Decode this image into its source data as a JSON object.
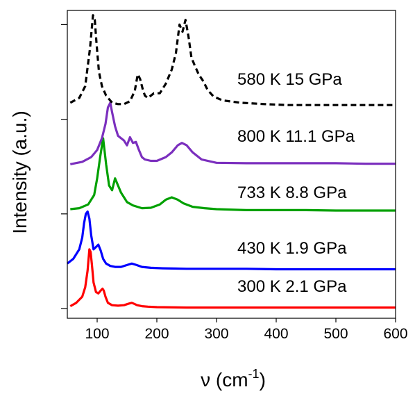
{
  "chart_data": {
    "type": "line",
    "xlabel": "ν (cm",
    "xlabel_sup": "-1",
    "xlabel_tail": ")",
    "ylabel": "Intensity (a.u.)",
    "xlim": [
      50,
      600
    ],
    "ylim": [
      0,
      6.3
    ],
    "x_ticks": [
      100,
      200,
      300,
      400,
      500,
      600
    ],
    "x_tick_labels": [
      "100",
      "200",
      "300",
      "400",
      "500",
      "600"
    ],
    "y_ticks": [
      0,
      2,
      4,
      6
    ],
    "y_tick_labels": [
      "",
      "",
      "",
      ""
    ],
    "grid": false,
    "legend": "none",
    "series": [
      {
        "name": "300 K 2.1 GPa",
        "color": "#ff0000",
        "style": "solid",
        "x": [
          55,
          65,
          75,
          80,
          84,
          87,
          89,
          91,
          94,
          98,
          102,
          106,
          109,
          111,
          114,
          118,
          125,
          135,
          145,
          152,
          158,
          162,
          167,
          175,
          185,
          200,
          250,
          300,
          350,
          400,
          450,
          500,
          550,
          600
        ],
        "y": [
          0.05,
          0.12,
          0.25,
          0.45,
          0.8,
          1.25,
          1.2,
          0.95,
          0.55,
          0.35,
          0.32,
          0.38,
          0.42,
          0.38,
          0.25,
          0.12,
          0.07,
          0.06,
          0.07,
          0.1,
          0.12,
          0.1,
          0.07,
          0.05,
          0.04,
          0.03,
          0.02,
          0.02,
          0.02,
          0.02,
          0.02,
          0.02,
          0.02,
          0.02
        ]
      },
      {
        "name": "430 K 1.9 GPa",
        "color": "#0000ff",
        "style": "solid",
        "x": [
          50,
          60,
          70,
          75,
          78,
          81,
          84,
          87,
          90,
          94,
          98,
          102,
          106,
          110,
          115,
          122,
          130,
          140,
          150,
          158,
          166,
          175,
          190,
          210,
          250,
          300,
          350,
          400,
          450,
          500,
          550,
          600
        ],
        "y": [
          0.95,
          1.05,
          1.25,
          1.5,
          1.8,
          2.0,
          2.05,
          1.9,
          1.55,
          1.25,
          1.3,
          1.35,
          1.22,
          1.05,
          0.95,
          0.9,
          0.88,
          0.88,
          0.92,
          0.95,
          0.92,
          0.88,
          0.86,
          0.85,
          0.84,
          0.84,
          0.84,
          0.83,
          0.83,
          0.83,
          0.83,
          0.83
        ]
      },
      {
        "name": "733 K 8.8 GPa",
        "color": "#00a000",
        "style": "solid",
        "x": [
          55,
          70,
          85,
          95,
          100,
          105,
          110,
          115,
          120,
          125,
          130,
          135,
          140,
          145,
          150,
          160,
          175,
          190,
          205,
          215,
          225,
          235,
          245,
          260,
          280,
          300,
          350,
          400,
          450,
          500,
          550,
          600
        ],
        "y": [
          2.1,
          2.12,
          2.2,
          2.4,
          2.75,
          3.2,
          3.6,
          3.05,
          2.6,
          2.5,
          2.75,
          2.6,
          2.45,
          2.35,
          2.25,
          2.18,
          2.12,
          2.13,
          2.2,
          2.3,
          2.35,
          2.3,
          2.22,
          2.15,
          2.12,
          2.1,
          2.08,
          2.08,
          2.08,
          2.07,
          2.07,
          2.07
        ]
      },
      {
        "name": "800 K 11.1 GPa",
        "color": "#7b2fbe",
        "style": "solid",
        "x": [
          55,
          75,
          90,
          100,
          108,
          114,
          118,
          122,
          125,
          130,
          135,
          140,
          145,
          150,
          155,
          160,
          165,
          170,
          175,
          180,
          190,
          200,
          215,
          225,
          235,
          242,
          250,
          260,
          275,
          300,
          350,
          400,
          450,
          500,
          550,
          600
        ],
        "y": [
          3.05,
          3.1,
          3.2,
          3.35,
          3.6,
          3.9,
          4.25,
          4.35,
          4.15,
          3.85,
          3.65,
          3.6,
          3.55,
          3.45,
          3.62,
          3.5,
          3.52,
          3.35,
          3.2,
          3.15,
          3.12,
          3.12,
          3.2,
          3.3,
          3.45,
          3.5,
          3.45,
          3.3,
          3.15,
          3.08,
          3.07,
          3.07,
          3.07,
          3.07,
          3.06,
          3.06
        ]
      },
      {
        "name": "580 K 15 GPa",
        "color": "#000000",
        "style": "dashed",
        "x": [
          55,
          70,
          80,
          88,
          93,
          96,
          99,
          103,
          108,
          115,
          125,
          135,
          145,
          155,
          163,
          168,
          172,
          176,
          180,
          185,
          195,
          205,
          215,
          225,
          232,
          238,
          243,
          248,
          253,
          258,
          263,
          270,
          278,
          285,
          295,
          310,
          340,
          380,
          420,
          460,
          500,
          550,
          600
        ],
        "y": [
          4.35,
          4.45,
          4.7,
          5.5,
          6.2,
          6.1,
          5.6,
          5.0,
          4.7,
          4.5,
          4.35,
          4.32,
          4.32,
          4.38,
          4.6,
          4.95,
          4.85,
          4.65,
          4.5,
          4.45,
          4.55,
          4.55,
          4.75,
          5.05,
          5.4,
          6.0,
          5.85,
          6.1,
          5.75,
          5.3,
          5.15,
          4.95,
          4.8,
          4.62,
          4.48,
          4.4,
          4.35,
          4.32,
          4.3,
          4.3,
          4.3,
          4.3,
          4.3
        ]
      }
    ]
  }
}
